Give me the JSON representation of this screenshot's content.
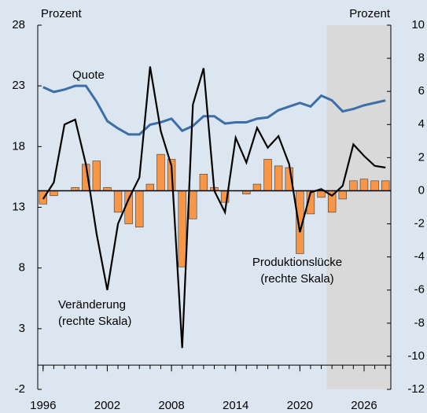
{
  "chart_data": {
    "type": "bar-line",
    "y_label": "Prozent",
    "y2_label": "Prozent",
    "x": [
      1996,
      1997,
      1998,
      1999,
      2000,
      2001,
      2002,
      2003,
      2004,
      2005,
      2006,
      2007,
      2008,
      2009,
      2010,
      2011,
      2012,
      2013,
      2014,
      2015,
      2016,
      2017,
      2018,
      2019,
      2020,
      2021,
      2022,
      2023,
      2024,
      2025,
      2026,
      2027,
      2028
    ],
    "xlim": [
      1995.5,
      2028.5
    ],
    "xticks": [
      1996,
      2002,
      2008,
      2014,
      2020,
      2026
    ],
    "ylim": [
      -2,
      28
    ],
    "yticks": [
      -2,
      3,
      8,
      13,
      18,
      23,
      28
    ],
    "y2lim": [
      -12,
      10
    ],
    "y2ticks": [
      -12,
      -10,
      -8,
      -6,
      -4,
      -2,
      0,
      2,
      4,
      6,
      8,
      10
    ],
    "shaded_from": 2022.5,
    "shade_color": "#d9d9d9",
    "series": [
      {
        "name": "Produktionslücke",
        "name_note": "(rechte Skala)",
        "type": "bar",
        "axis": "y2",
        "color": "#f79646",
        "values": [
          -0.8,
          -0.3,
          0,
          0.2,
          1.6,
          1.8,
          0.2,
          -1.3,
          -2.0,
          -2.2,
          0.4,
          2.2,
          1.9,
          -4.6,
          -1.7,
          1.0,
          0.2,
          -0.7,
          0,
          -0.2,
          0.4,
          1.9,
          1.5,
          1.4,
          -3.8,
          -1.4,
          -0.4,
          -1.3,
          -0.5,
          0.6,
          0.7,
          0.6,
          0.6
        ]
      },
      {
        "name": "Quote",
        "type": "line",
        "axis": "y",
        "color": "#3d6ea7",
        "values": [
          22.9,
          22.5,
          22.7,
          23.0,
          23.0,
          21.7,
          20.1,
          19.5,
          19.0,
          19.0,
          19.8,
          20.0,
          20.3,
          19.3,
          19.7,
          20.5,
          20.5,
          19.9,
          20.0,
          20.0,
          20.3,
          20.4,
          21.0,
          21.3,
          21.6,
          21.3,
          22.2,
          21.8,
          20.9,
          21.1,
          21.4,
          21.6,
          21.8
        ]
      },
      {
        "name": "Veränderung",
        "name_note": "(rechte Skala)",
        "type": "line",
        "axis": "y2",
        "color": "#000000",
        "values": [
          -0.5,
          0.5,
          4.0,
          4.3,
          1.6,
          -2.6,
          -6.0,
          -2.0,
          -0.5,
          0.8,
          7.5,
          3.6,
          1.5,
          -9.5,
          5.2,
          7.4,
          0,
          -1.3,
          3.2,
          1.7,
          3.8,
          2.6,
          3.3,
          1.6,
          -2.5,
          -0.1,
          0.1,
          -0.3,
          0.3,
          2.8,
          2.1,
          1.5,
          1.4
        ]
      }
    ]
  }
}
